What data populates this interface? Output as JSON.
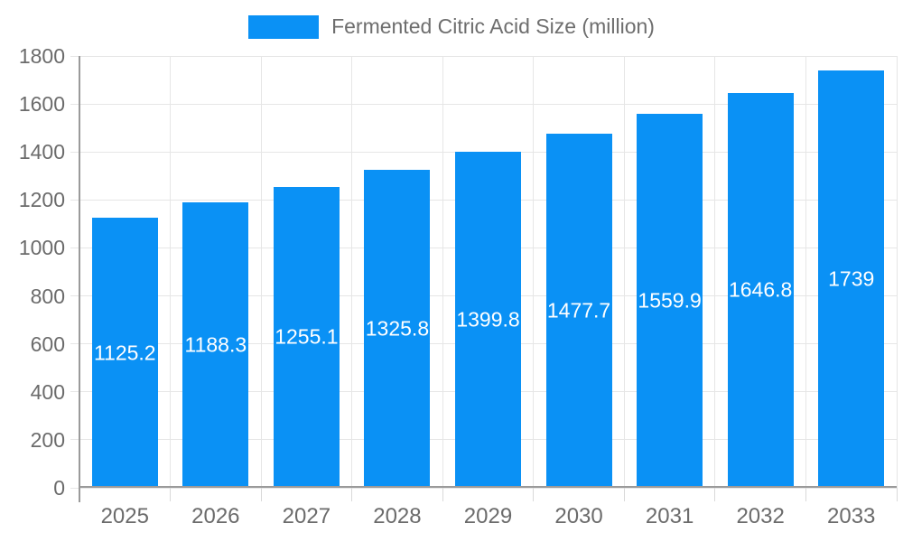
{
  "chart_data": {
    "type": "bar",
    "title": "",
    "legend": {
      "label": "Fermented Citric Acid Size (million)",
      "position": "top"
    },
    "categories": [
      "2025",
      "2026",
      "2027",
      "2028",
      "2029",
      "2030",
      "2031",
      "2032",
      "2033"
    ],
    "values": [
      1125.2,
      1188.3,
      1255.1,
      1325.8,
      1399.8,
      1477.7,
      1559.9,
      1646.8,
      1739
    ],
    "value_labels": [
      "1125.2",
      "1188.3",
      "1255.1",
      "1325.8",
      "1399.8",
      "1477.7",
      "1559.9",
      "1646.8",
      "1739"
    ],
    "xlabel": "",
    "ylabel": "",
    "ylim": [
      0,
      1800
    ],
    "ytick_step": 200,
    "ytick_labels": [
      "0",
      "200",
      "400",
      "600",
      "800",
      "1000",
      "1200",
      "1400",
      "1600",
      "1800"
    ],
    "grid": true,
    "colors": {
      "bar": "#0a91f5",
      "grid_line": "#e6e6e6",
      "tick_mark": "#d9d9d9",
      "axis_line": "#9a9a9a",
      "tick_text": "#6b6b6b",
      "legend_text": "#6e6e6e",
      "value_text": "#ffffff",
      "background": "#ffffff"
    }
  }
}
